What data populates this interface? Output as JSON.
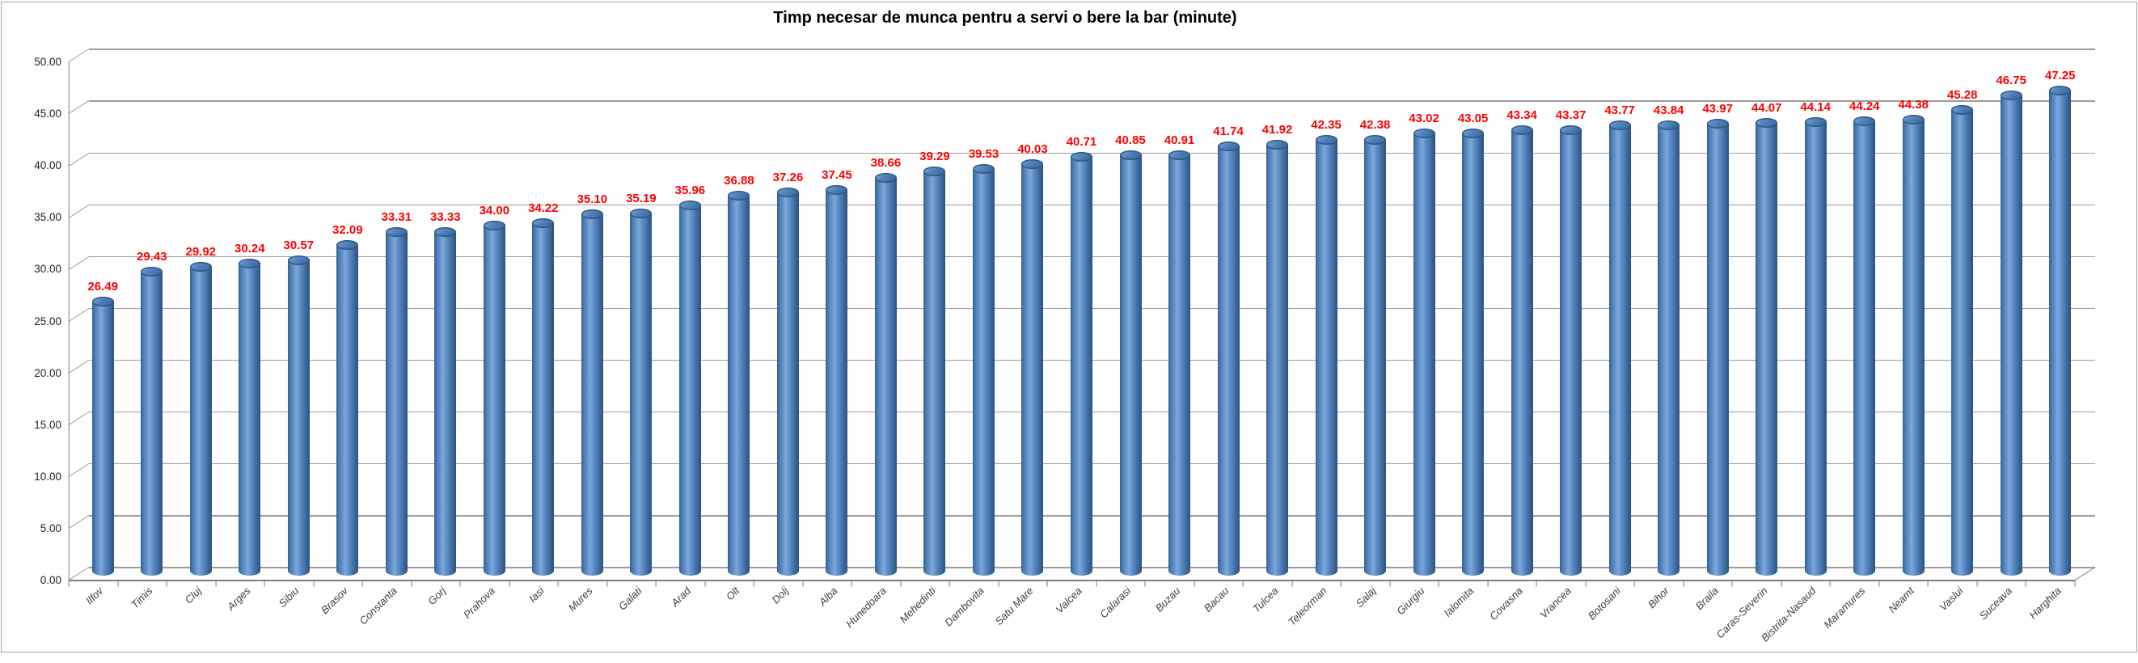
{
  "window": {
    "background": "#ffffff",
    "border_color": "#a6a6a6"
  },
  "chart_data": {
    "type": "bar",
    "style": "3d-cylinder",
    "title": "Timp necesar de munca pentru a servi o bere la bar (minute)",
    "categories": [
      "Ilfov",
      "Timis",
      "Cluj",
      "Arges",
      "Sibiu",
      "Brasov",
      "Constanta",
      "Gorj",
      "Prahova",
      "Iasi",
      "Mures",
      "Galati",
      "Arad",
      "Olt",
      "Dolj",
      "Alba",
      "Hunedoara",
      "Mehedinti",
      "Dambovita",
      "Satu Mare",
      "Valcea",
      "Calarasi",
      "Buzau",
      "Bacau",
      "Tulcea",
      "Teleorman",
      "Salaj",
      "Giurgiu",
      "Ialomita",
      "Covasna",
      "Vrancea",
      "Botosani",
      "Bihor",
      "Braila",
      "Caras-Severin",
      "Bistrita-Nasaud",
      "Maramures",
      "Neamt",
      "Vaslui",
      "Suceava",
      "Harghita"
    ],
    "values": [
      26.49,
      29.43,
      29.92,
      30.24,
      30.57,
      32.09,
      33.31,
      33.33,
      34.0,
      34.22,
      35.1,
      35.19,
      35.96,
      36.88,
      37.26,
      37.45,
      38.66,
      39.29,
      39.53,
      40.03,
      40.71,
      40.85,
      40.91,
      41.74,
      41.92,
      42.35,
      42.38,
      43.02,
      43.05,
      43.34,
      43.37,
      43.77,
      43.84,
      43.97,
      44.07,
      44.14,
      44.24,
      44.38,
      45.28,
      46.75,
      47.25
    ],
    "ylim": [
      0,
      50
    ],
    "ytick_step": 5,
    "ytick_labels": [
      "0.00",
      "5.00",
      "10.00",
      "15.00",
      "20.00",
      "25.00",
      "30.00",
      "35.00",
      "40.00",
      "45.00",
      "50.00"
    ],
    "grid": true,
    "legend": "none",
    "xlabel": "",
    "ylabel": "",
    "bar_color": "#4F81BD",
    "value_label_color": "#FF0000",
    "axis_color": "#7F7F7F",
    "gridline_color": "#9D9D9D",
    "category_label_color": "#3F3F3F",
    "ytick_label_color": "#1F1F1F"
  }
}
